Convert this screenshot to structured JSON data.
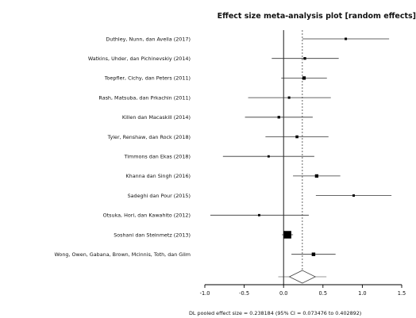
{
  "chart_data": {
    "type": "forest",
    "title": "Effect size meta-analysis plot [random effects]",
    "xlabel": "",
    "ylabel": "",
    "xlim": [
      -1.0,
      1.5
    ],
    "xticks": [
      -1.0,
      -0.5,
      0.0,
      0.5,
      1.0,
      1.5
    ],
    "xtick_labels": [
      "-1.0",
      "-0.5",
      "0.0",
      "0.5",
      "1.0",
      "1.5"
    ],
    "reference_line": 0.0,
    "pooled_line": 0.238184,
    "studies": [
      {
        "label": "Duthley, Nunn, dan Avella (2017)",
        "effect": 0.79,
        "ci_low": 0.24,
        "ci_high": 1.34,
        "weight": 1.0
      },
      {
        "label": "Watkins, Uhder, dan Pichinevskiy (2014)",
        "effect": 0.27,
        "ci_low": -0.15,
        "ci_high": 0.7,
        "weight": 1.2
      },
      {
        "label": "Toepfler, Cichy, dan Peters (2011)",
        "effect": 0.26,
        "ci_low": -0.03,
        "ci_high": 0.55,
        "weight": 2.0
      },
      {
        "label": "Rash, Matsuba, dan Prkachin (2011)",
        "effect": 0.07,
        "ci_low": -0.45,
        "ci_high": 0.6,
        "weight": 1.0
      },
      {
        "label": "Killen dan Macaskill (2014)",
        "effect": -0.06,
        "ci_low": -0.49,
        "ci_high": 0.37,
        "weight": 1.2
      },
      {
        "label": "Tyler, Renshaw, dan Rock (2018)",
        "effect": 0.17,
        "ci_low": -0.23,
        "ci_high": 0.57,
        "weight": 1.4
      },
      {
        "label": "Timmons dan Ekas (2018)",
        "effect": -0.19,
        "ci_low": -0.77,
        "ci_high": 0.39,
        "weight": 0.9
      },
      {
        "label": "Khanna dan Singh (2016)",
        "effect": 0.42,
        "ci_low": 0.12,
        "ci_high": 0.72,
        "weight": 2.0
      },
      {
        "label": "Sadeghi dan Pour (2015)",
        "effect": 0.89,
        "ci_low": 0.41,
        "ci_high": 1.37,
        "weight": 1.0
      },
      {
        "label": "Otsuka, Hori, dan Kawahito (2012)",
        "effect": -0.31,
        "ci_low": -0.93,
        "ci_high": 0.32,
        "weight": 0.9
      },
      {
        "label": "Soshani dan Steinmetz (2013)",
        "effect": 0.05,
        "ci_low": -0.02,
        "ci_high": 0.12,
        "weight": 10.0
      },
      {
        "label": "Wong, Owen, Gabana, Brown, Mcinnis, Toth, dan Gilm",
        "effect": 0.38,
        "ci_low": 0.1,
        "ci_high": 0.66,
        "weight": 2.2
      }
    ],
    "pooled": {
      "effect": 0.238184,
      "ci_low": 0.073476,
      "ci_high": 0.402892
    },
    "footer": "DL pooled effect size = 0.238184  (95% CI = 0.073476 to 0.402892)",
    "grid": false,
    "legend": "none",
    "colors": {
      "marker": "#000000",
      "line": "#333333",
      "pooled_line": "#555555",
      "diamond_fill": "#ffffff"
    }
  }
}
